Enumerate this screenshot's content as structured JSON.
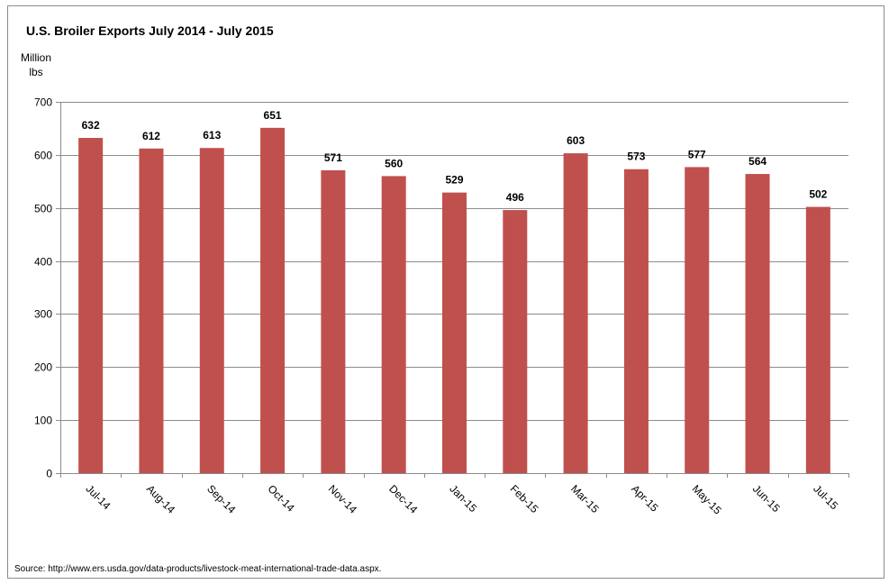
{
  "chart_data": {
    "type": "bar",
    "title": "U.S. Broiler Exports July 2014 - July 2015",
    "ylabel": "Million lbs",
    "ylabel_lines": [
      "Million",
      "lbs"
    ],
    "xlabel": "",
    "categories": [
      "Jul-14",
      "Aug-14",
      "Sep-14",
      "Oct-14",
      "Nov-14",
      "Dec-14",
      "Jan-15",
      "Feb-15",
      "Mar-15",
      "Apr-15",
      "May-15",
      "Jun-15",
      "Jul-15"
    ],
    "values": [
      632,
      612,
      613,
      651,
      571,
      560,
      529,
      496,
      603,
      573,
      577,
      564,
      502
    ],
    "ylim": [
      0,
      700
    ],
    "yticks": [
      0,
      100,
      200,
      300,
      400,
      500,
      600,
      700
    ],
    "grid": true,
    "legend": "none",
    "bar_color": "#c0504d",
    "data_labels": true
  },
  "source": "Source: http://www.ers.usda.gov/data-products/livestock-meat-international-trade-data.aspx."
}
